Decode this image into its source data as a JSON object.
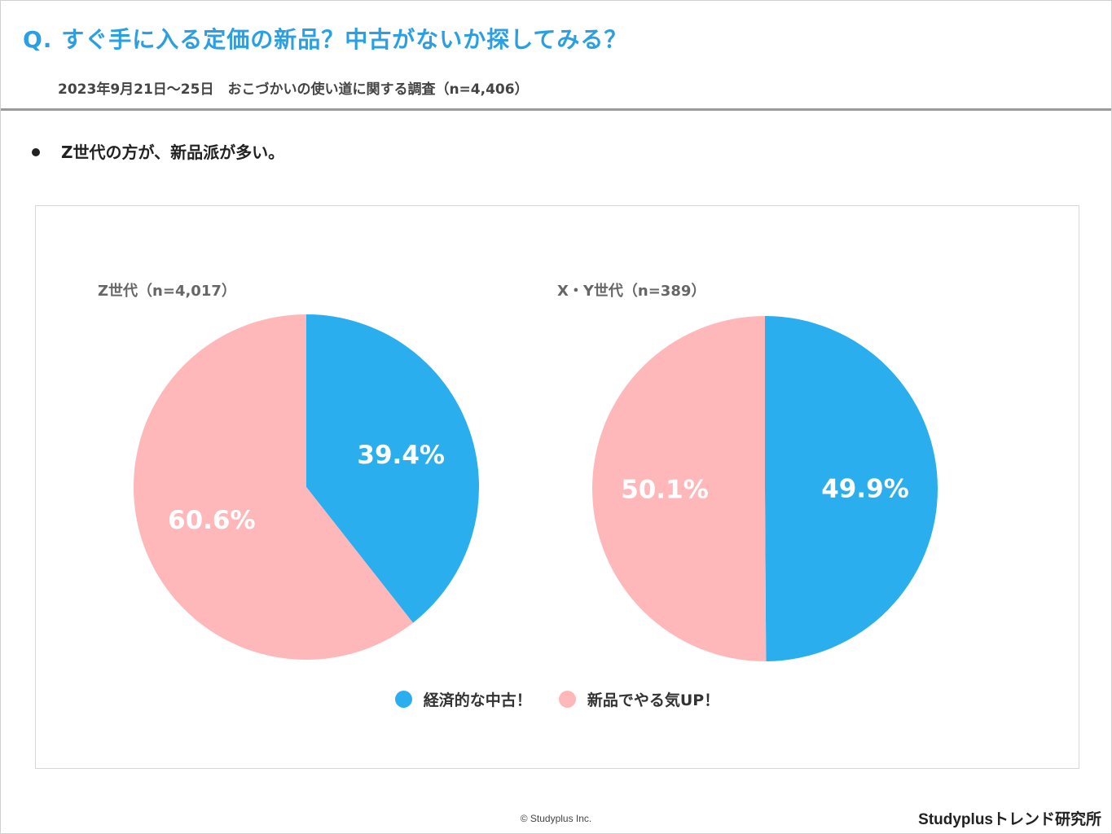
{
  "header": {
    "question": "Q. すぐ手に入る定価の新品？中古がないか探してみる？",
    "subtitle": "2023年9月21日〜25日　おこづかいの使い道に関する調査（n=4,406）"
  },
  "main": {
    "bullet": "Z世代の方が、新品派が多い。"
  },
  "colors": {
    "used": "#2aaeee",
    "new": "#ffb8ba"
  },
  "chart_data": [
    {
      "type": "pie",
      "title": "Z世代（n=4,017）",
      "slices": [
        {
          "label": "経済的な中古！",
          "value": 39.4,
          "value_label": "39.4%"
        },
        {
          "label": "新品でやる気UP！",
          "value": 60.6,
          "value_label": "60.6%"
        }
      ]
    },
    {
      "type": "pie",
      "title": "X・Y世代（n=389）",
      "slices": [
        {
          "label": "経済的な中古！",
          "value": 49.9,
          "value_label": "49.9%"
        },
        {
          "label": "新品でやる気UP！",
          "value": 50.1,
          "value_label": "50.1%"
        }
      ]
    }
  ],
  "legend": {
    "items": [
      {
        "label": "経済的な中古！"
      },
      {
        "label": "新品でやる気UP！"
      }
    ]
  },
  "footer": {
    "copyright": "© Studyplus Inc.",
    "brand": "Studyplusトレンド研究所"
  }
}
